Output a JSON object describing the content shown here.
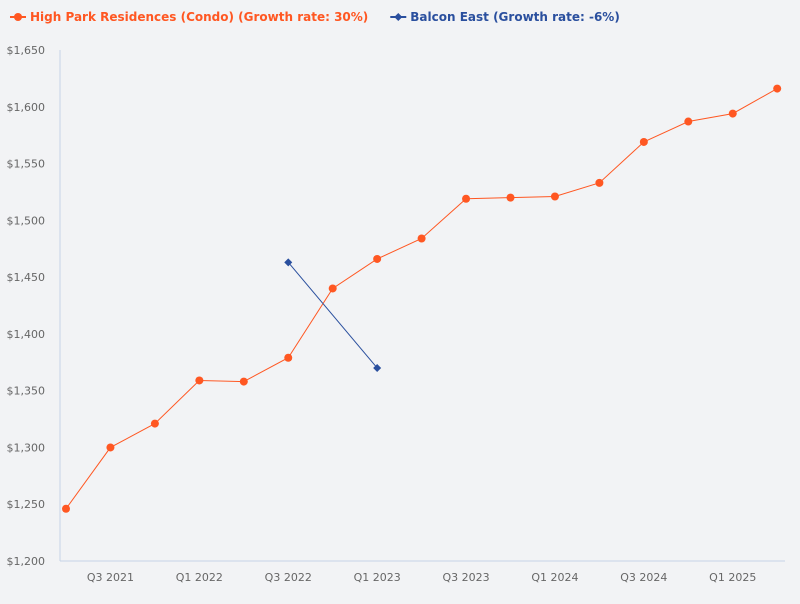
{
  "chart_data": {
    "type": "line",
    "title": "",
    "xlabel": "",
    "ylabel": "",
    "ylim": [
      1200,
      1650
    ],
    "yticks": [
      "$1,200",
      "$1,250",
      "$1,300",
      "$1,350",
      "$1,400",
      "$1,450",
      "$1,500",
      "$1,550",
      "$1,600",
      "$1,650"
    ],
    "ytick_values": [
      1200,
      1250,
      1300,
      1350,
      1400,
      1450,
      1500,
      1550,
      1600,
      1650
    ],
    "x": [
      "Q2 2021",
      "Q3 2021",
      "Q4 2021",
      "Q1 2022",
      "Q2 2022",
      "Q3 2022",
      "Q4 2022",
      "Q1 2023",
      "Q2 2023",
      "Q3 2023",
      "Q4 2023",
      "Q1 2024",
      "Q2 2024",
      "Q3 2024",
      "Q4 2024",
      "Q1 2025",
      "Q2 2025"
    ],
    "xticks": [
      "Q3 2021",
      "Q1 2022",
      "Q3 2022",
      "Q1 2023",
      "Q3 2023",
      "Q1 2024",
      "Q3 2024",
      "Q1 2025"
    ],
    "grid": false,
    "legend_position": "top-left",
    "series": [
      {
        "name": "High Park Residences (Condo) (Growth rate: 30%)",
        "color": "#ff5722",
        "marker": "circle",
        "values": [
          1246,
          1300,
          1321,
          1359,
          1358,
          1379,
          1440,
          1466,
          1484,
          1519,
          1520,
          1521,
          1533,
          1569,
          1587,
          1594,
          1616
        ]
      },
      {
        "name": "Balcon East (Growth rate: -6%)",
        "color": "#2a4f9e",
        "marker": "diamond",
        "values": [
          null,
          null,
          null,
          null,
          null,
          1463,
          null,
          1370,
          null,
          null,
          null,
          null,
          null,
          null,
          null,
          null,
          null
        ]
      }
    ]
  }
}
